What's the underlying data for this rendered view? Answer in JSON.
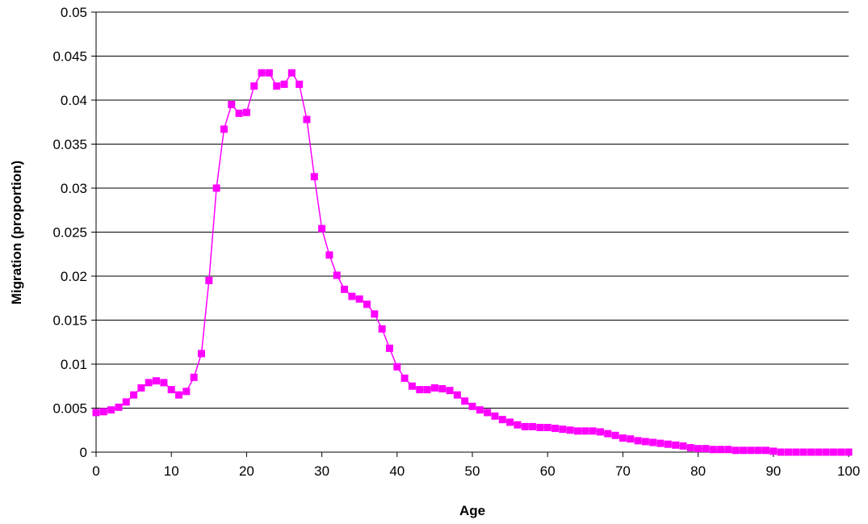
{
  "chart_data": {
    "type": "line",
    "title": "",
    "xlabel": "Age",
    "ylabel": "Migration (proportion)",
    "xlim": [
      0,
      100
    ],
    "ylim": [
      0,
      0.05
    ],
    "x_ticks": [
      "0",
      "10",
      "20",
      "30",
      "40",
      "50",
      "60",
      "70",
      "80",
      "90",
      "100"
    ],
    "y_ticks": [
      "0",
      "0.005",
      "0.01",
      "0.015",
      "0.02",
      "0.025",
      "0.03",
      "0.035",
      "0.04",
      "0.045",
      "0.05"
    ],
    "grid": "horizontal",
    "legend": "none",
    "marker": "square",
    "color": "#ff00ff",
    "series": [
      {
        "x": [
          0,
          1,
          2,
          3,
          4,
          5,
          6,
          7,
          8,
          9,
          10,
          11,
          12,
          13,
          14,
          15,
          16,
          17,
          18,
          19,
          20,
          21,
          22,
          23,
          24,
          25,
          26,
          27,
          28,
          29,
          30,
          31,
          32,
          33,
          34,
          35,
          36,
          37,
          38,
          39,
          40,
          41,
          42,
          43,
          44,
          45,
          46,
          47,
          48,
          49,
          50,
          51,
          52,
          53,
          54,
          55,
          56,
          57,
          58,
          59,
          60,
          61,
          62,
          63,
          64,
          65,
          66,
          67,
          68,
          69,
          70,
          71,
          72,
          73,
          74,
          75,
          76,
          77,
          78,
          79,
          80,
          81,
          82,
          83,
          84,
          85,
          86,
          87,
          88,
          89,
          90,
          91,
          92,
          93,
          94,
          95,
          96,
          97,
          98,
          99,
          100
        ],
        "y": [
          0.0045,
          0.0046,
          0.0048,
          0.0051,
          0.0057,
          0.0065,
          0.0073,
          0.0079,
          0.0081,
          0.0079,
          0.0071,
          0.0065,
          0.0069,
          0.0085,
          0.0112,
          0.0195,
          0.03,
          0.0367,
          0.0395,
          0.0385,
          0.0386,
          0.0416,
          0.0431,
          0.0431,
          0.0416,
          0.0418,
          0.0431,
          0.0418,
          0.0378,
          0.0313,
          0.0254,
          0.0224,
          0.0201,
          0.0185,
          0.0177,
          0.0174,
          0.0168,
          0.0157,
          0.014,
          0.0118,
          0.0097,
          0.0084,
          0.0075,
          0.0071,
          0.0071,
          0.0073,
          0.0072,
          0.007,
          0.0065,
          0.0058,
          0.0052,
          0.0048,
          0.0045,
          0.0041,
          0.0037,
          0.0034,
          0.0031,
          0.0029,
          0.0029,
          0.0028,
          0.0028,
          0.0027,
          0.0026,
          0.0025,
          0.0024,
          0.0024,
          0.0024,
          0.0023,
          0.0021,
          0.0019,
          0.0016,
          0.0015,
          0.0013,
          0.0012,
          0.0011,
          0.001,
          0.0009,
          0.0008,
          0.0007,
          0.0005,
          0.0004,
          0.0004,
          0.0003,
          0.0003,
          0.0003,
          0.0002,
          0.0002,
          0.0002,
          0.0002,
          0.0002,
          0.0001,
          0.0,
          0.0,
          0.0,
          0.0,
          0.0,
          0.0,
          0.0,
          0.0,
          0.0,
          0.0
        ]
      }
    ]
  }
}
